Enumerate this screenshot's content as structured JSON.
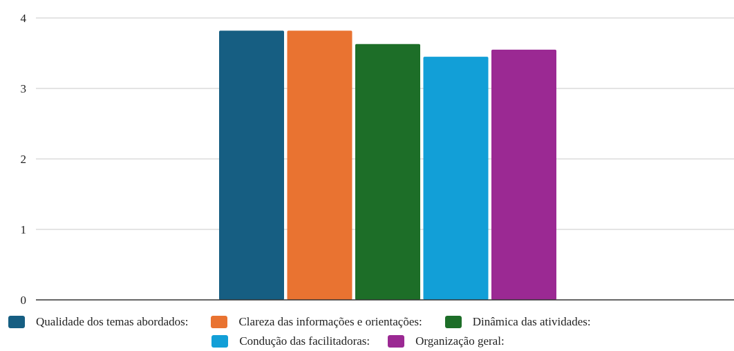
{
  "chart_data": {
    "type": "bar",
    "categories": [
      ""
    ],
    "series": [
      {
        "name": "Qualidade dos temas abordados:",
        "values": [
          3.82
        ],
        "color": "#165E82"
      },
      {
        "name": "Clareza das informações e orientações:",
        "values": [
          3.82
        ],
        "color": "#E97331"
      },
      {
        "name": "Dinâmica das atividades:",
        "values": [
          3.63
        ],
        "color": "#1D6E28"
      },
      {
        "name": "Condução das facilitadoras:",
        "values": [
          3.45
        ],
        "color": "#129FD7"
      },
      {
        "name": "Organização geral:",
        "values": [
          3.55
        ],
        "color": "#9B2993"
      }
    ],
    "title": "",
    "xlabel": "",
    "ylabel": "",
    "ylim": [
      0,
      4
    ],
    "yticks": [
      "0",
      "1",
      "2",
      "3",
      "4"
    ],
    "grid": true,
    "legend_position": "bottom"
  }
}
